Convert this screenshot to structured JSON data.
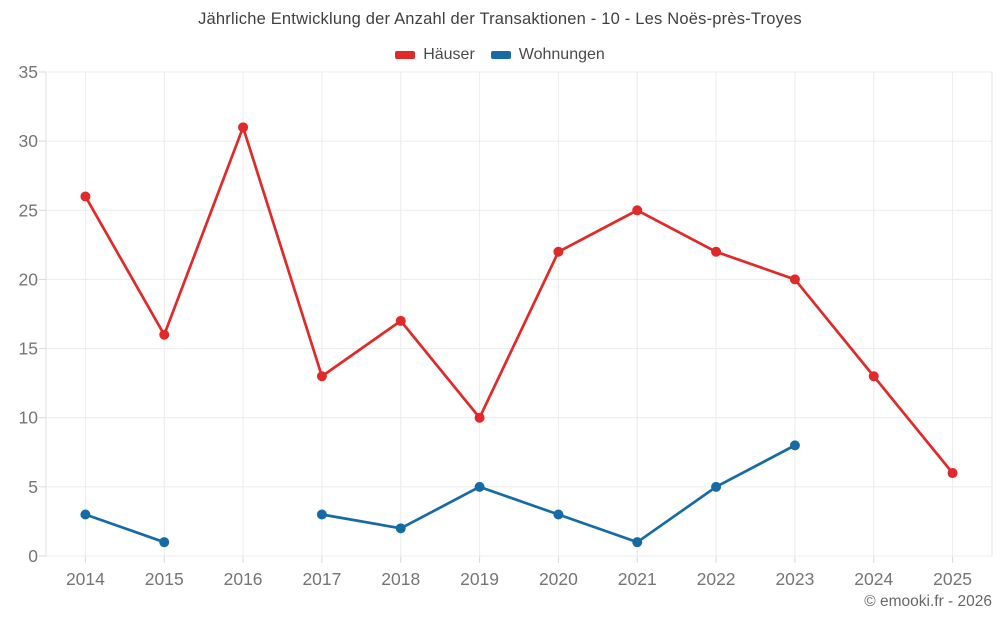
{
  "title": "Jährliche Entwicklung der Anzahl der Transaktionen - 10 - Les Noës-près-Troyes",
  "footer": "© emooki.fr - 2026",
  "legend": {
    "items": [
      {
        "label": "Häuser",
        "color": "#e12929"
      },
      {
        "label": "Wohnungen",
        "color": "#176ba5"
      }
    ]
  },
  "colors": {
    "grid": "#ececec",
    "border": "#e2e2e2",
    "tick": "#d9d9d9",
    "axis_label": "#757575",
    "background": "#ffffff",
    "haeuser": "#e12929",
    "wohnungen": "#176ba5"
  },
  "chart_data": {
    "type": "line",
    "title": "Jährliche Entwicklung der Anzahl der Transaktionen - 10 - Les Noës-près-Troyes",
    "categories": [
      "2014",
      "2015",
      "2016",
      "2017",
      "2018",
      "2019",
      "2020",
      "2021",
      "2022",
      "2023",
      "2024",
      "2025"
    ],
    "series": [
      {
        "name": "Häuser",
        "color": "#e12929",
        "values": [
          26,
          16,
          31,
          13,
          17,
          10,
          22,
          25,
          22,
          20,
          13,
          6
        ]
      },
      {
        "name": "Wohnungen",
        "color": "#176ba5",
        "values": [
          3,
          1,
          null,
          3,
          2,
          5,
          3,
          1,
          5,
          8,
          null,
          null
        ]
      }
    ],
    "xlabel": "",
    "ylabel": "",
    "ylim": [
      0,
      35
    ],
    "ytick_step": 5,
    "yticks": [
      0,
      5,
      10,
      15,
      20,
      25,
      30,
      35
    ],
    "grid": true,
    "legend_position": "top",
    "marker_radius": 5,
    "line_width": 2.7
  }
}
